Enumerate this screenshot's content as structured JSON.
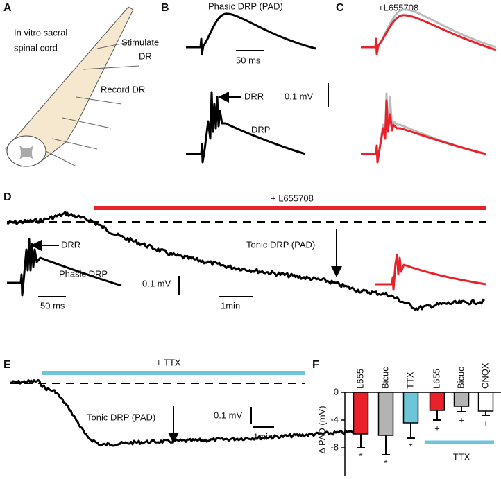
{
  "panels": {
    "a": {
      "label": "A",
      "title_lines": [
        "In vitro sacral",
        "spinal cord"
      ],
      "stimulate_lines": [
        "Stimulate",
        "DR"
      ],
      "record": "Record DR"
    },
    "b": {
      "label": "B",
      "title": "Phasic DRP (PAD)",
      "time_scale": "50 ms",
      "drr": "DRR",
      "drp": "DRP",
      "voltage_scale": "0.1 mV"
    },
    "c": {
      "label": "C",
      "title": "+L655708"
    },
    "d": {
      "label": "D",
      "drug": "+ L655708",
      "drr": "DRR",
      "phasic": "Phasic DRP",
      "time_scale_inset": "50 ms",
      "voltage_scale": "0.1 mV",
      "time_scale": "1min",
      "tonic": "Tonic DRP (PAD)"
    },
    "e": {
      "label": "E",
      "drug": "+ TTX",
      "tonic": "Tonic DRP (PAD)",
      "voltage_scale": "0.1 mV",
      "time_scale": "1min"
    }
  },
  "chart_data": {
    "type": "bar",
    "panel_label": "F",
    "y_label": "Δ PAD (mV)",
    "categories": [
      "L655",
      "Bicuc",
      "TTX",
      "L655",
      "Bicuc",
      "CNQX"
    ],
    "values": [
      -6,
      -6.2,
      -4.4,
      -2.6,
      -2,
      -2.7
    ],
    "errors": [
      2,
      2.8,
      2.2,
      1.4,
      0.8,
      0.6
    ],
    "colors": [
      "#e8212b",
      "#b3b3b3",
      "#6cc5d9",
      "#e8212b",
      "#b3b3b3",
      "#ffffff"
    ],
    "markers": [
      "*",
      "*",
      "*",
      "+",
      "+",
      "+"
    ],
    "group_label": "TTX",
    "group_color": "#6cc5d9",
    "ylim": [
      -12,
      0
    ],
    "yticks": [
      0,
      -4,
      -8
    ]
  }
}
